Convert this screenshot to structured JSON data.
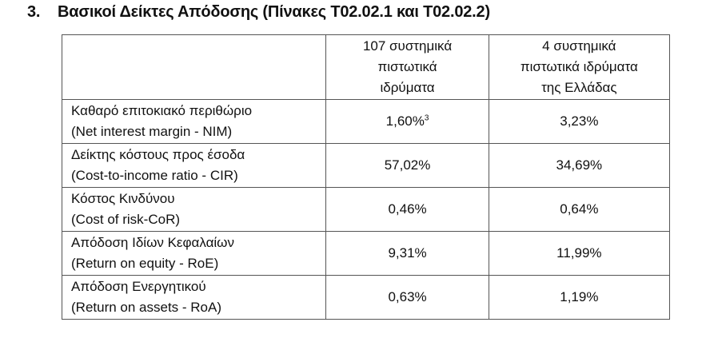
{
  "section": {
    "number": "3.",
    "title": "Βασικοί Δείκτες Απόδοσης (Πίνακες T02.02.1 και T02.02.2)"
  },
  "table": {
    "headers": [
      "",
      [
        "107 συστημικά",
        "πιστωτικά",
        "ιδρύματα"
      ],
      [
        "4 συστημικά",
        "πιστωτικά ιδρύματα",
        "της Ελλάδας"
      ]
    ],
    "rows": [
      {
        "label_el": "Καθαρό επιτοκιακό περιθώριο",
        "label_en": "(Net interest margin - NIM)",
        "eu": "1,60%",
        "eu_note": "3",
        "gr": "3,23%"
      },
      {
        "label_el": "Δείκτης κόστους προς έσοδα",
        "label_en": "(Cost-to-income ratio - CIR)",
        "eu": "57,02%",
        "gr": "34,69%"
      },
      {
        "label_el": "Κόστος Κινδύνου",
        "label_en": "(Cost of risk-CoR)",
        "eu": "0,46%",
        "gr": "0,64%"
      },
      {
        "label_el": "Απόδοση Ιδίων Κεφαλαίων",
        "label_en": "(Return on equity - RoE)",
        "eu": "9,31%",
        "gr": "11,99%"
      },
      {
        "label_el": "Απόδοση Ενεργητικού",
        "label_en": "(Return on assets - RoA)",
        "eu": "0,63%",
        "gr": "1,19%"
      }
    ]
  }
}
